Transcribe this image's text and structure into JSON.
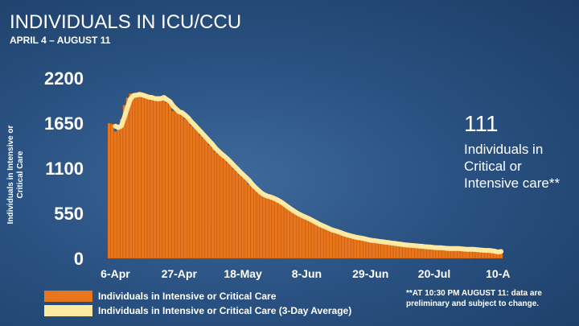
{
  "chart_data": {
    "type": "bar",
    "title": "INDIVIDUALS IN ICU/CCU",
    "subtitle": "APRIL 4 – AUGUST 11",
    "y_label": "Individuals in Intensive or Critical Care",
    "annotations": [
      "111",
      "Individuals in Critical or Intensive care**",
      "**AT 10:30 PM AUGUST 11: data are preliminary and subject to change."
    ],
    "categories": [
      null,
      null,
      "6-Apr",
      null,
      null,
      null,
      null,
      null,
      null,
      null,
      null,
      null,
      null,
      null,
      null,
      null,
      null,
      null,
      null,
      null,
      null,
      null,
      null,
      "27-Apr",
      null,
      null,
      null,
      null,
      null,
      null,
      null,
      null,
      null,
      null,
      null,
      null,
      null,
      null,
      null,
      null,
      null,
      null,
      null,
      null,
      "18-May",
      null,
      null,
      null,
      null,
      null,
      null,
      null,
      null,
      null,
      null,
      null,
      null,
      null,
      null,
      null,
      null,
      null,
      null,
      null,
      null,
      "8-Jun",
      null,
      null,
      null,
      null,
      null,
      null,
      null,
      null,
      null,
      null,
      null,
      null,
      null,
      null,
      null,
      null,
      null,
      null,
      null,
      null,
      "29-Jun",
      null,
      null,
      null,
      null,
      null,
      null,
      null,
      null,
      null,
      null,
      null,
      null,
      null,
      null,
      null,
      null,
      null,
      null,
      null,
      null,
      "20-Jul",
      null,
      null,
      null,
      null,
      null,
      null,
      null,
      null,
      null,
      null,
      null,
      null,
      null,
      null,
      null,
      null,
      null,
      null,
      null,
      null,
      "10-A",
      null
    ],
    "series": [
      {
        "name": "Individuals in Intensive or Critical Care",
        "color": "#e8761c",
        "kind": "bar",
        "values": [
          1650,
          1640,
          1550,
          1600,
          1700,
          1870,
          1960,
          2010,
          1990,
          1980,
          2030,
          1960,
          1950,
          1990,
          1940,
          1920,
          1980,
          1950,
          1960,
          1900,
          1880,
          1800,
          1790,
          1780,
          1760,
          1700,
          1680,
          1620,
          1590,
          1560,
          1500,
          1470,
          1440,
          1380,
          1350,
          1300,
          1270,
          1250,
          1210,
          1170,
          1140,
          1090,
          1060,
          1020,
          990,
          950,
          900,
          870,
          830,
          800,
          770,
          760,
          750,
          740,
          720,
          700,
          680,
          650,
          620,
          600,
          570,
          550,
          530,
          510,
          500,
          480,
          460,
          440,
          420,
          400,
          390,
          370,
          350,
          340,
          330,
          320,
          300,
          290,
          280,
          270,
          260,
          250,
          250,
          240,
          230,
          220,
          220,
          210,
          210,
          200,
          200,
          190,
          190,
          180,
          180,
          170,
          170,
          160,
          160,
          160,
          150,
          150,
          150,
          140,
          140,
          140,
          130,
          130,
          130,
          130,
          120,
          120,
          120,
          120,
          120,
          120,
          110,
          110,
          110,
          110,
          110,
          110,
          100,
          100,
          100,
          90,
          90,
          80,
          60,
          111
        ]
      },
      {
        "name": "Individuals in Intensive or Critical Care (3-Day Average)",
        "color": "#fde9a2",
        "kind": "line",
        "values": [
          null,
          null,
          1613,
          1597,
          1617,
          1723,
          1843,
          1947,
          1987,
          1993,
          2000,
          1993,
          1980,
          1967,
          1963,
          1950,
          1947,
          1950,
          1963,
          1937,
          1913,
          1860,
          1823,
          1790,
          1777,
          1747,
          1713,
          1667,
          1630,
          1590,
          1550,
          1510,
          1470,
          1430,
          1390,
          1343,
          1307,
          1273,
          1243,
          1210,
          1173,
          1133,
          1097,
          1057,
          1023,
          987,
          953,
          907,
          867,
          833,
          800,
          777,
          760,
          750,
          737,
          720,
          700,
          677,
          650,
          623,
          597,
          573,
          550,
          530,
          513,
          497,
          480,
          460,
          440,
          420,
          403,
          387,
          370,
          353,
          340,
          330,
          317,
          303,
          290,
          280,
          270,
          260,
          253,
          247,
          240,
          230,
          223,
          217,
          213,
          207,
          203,
          197,
          193,
          187,
          183,
          177,
          173,
          167,
          163,
          160,
          157,
          153,
          150,
          147,
          143,
          140,
          137,
          133,
          130,
          130,
          127,
          123,
          120,
          120,
          120,
          120,
          117,
          113,
          110,
          110,
          110,
          107,
          103,
          100,
          97,
          97,
          93,
          87,
          77,
          84
        ]
      }
    ],
    "ylim": [
      0,
      2200
    ],
    "yticks": [
      0,
      550,
      1100,
      1650,
      2200
    ],
    "grid": false
  }
}
